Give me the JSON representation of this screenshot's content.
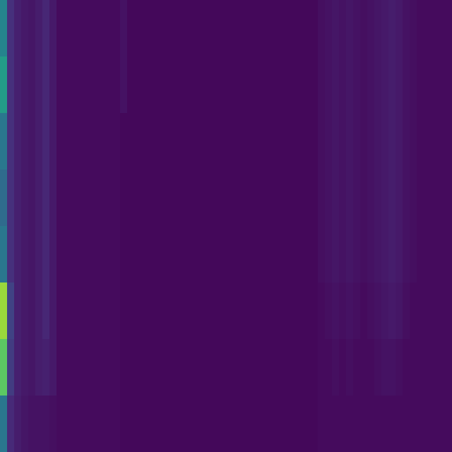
{
  "chart_data": {
    "type": "heatmap",
    "tick_labels": false,
    "zlim": [
      0,
      1
    ],
    "cells": [
      [
        0.45,
        0.14,
        0.09,
        0.07,
        0.06,
        0.08,
        0.11,
        0.07,
        0.03,
        0.03,
        0.03,
        0.03,
        0.03,
        0.03,
        0.03,
        0.03,
        0.03,
        0.05,
        0.02,
        0.02,
        0.02,
        0.02,
        0.02,
        0.02,
        0.02,
        0.02,
        0.02,
        0.02,
        0.02,
        0.02,
        0.02,
        0.02,
        0.02,
        0.02,
        0.02,
        0.02,
        0.02,
        0.02,
        0.02,
        0.02,
        0.02,
        0.02,
        0.02,
        0.02,
        0.02,
        0.04,
        0.05,
        0.06,
        0.05,
        0.06,
        0.05,
        0.04,
        0.05,
        0.06,
        0.07,
        0.08,
        0.07,
        0.05,
        0.04,
        0.03,
        0.03,
        0.03,
        0.03,
        0.03
      ],
      [
        0.55,
        0.14,
        0.09,
        0.07,
        0.06,
        0.08,
        0.11,
        0.07,
        0.03,
        0.03,
        0.03,
        0.03,
        0.03,
        0.03,
        0.03,
        0.03,
        0.03,
        0.05,
        0.02,
        0.02,
        0.02,
        0.02,
        0.02,
        0.02,
        0.02,
        0.02,
        0.02,
        0.02,
        0.02,
        0.02,
        0.02,
        0.02,
        0.02,
        0.02,
        0.02,
        0.02,
        0.02,
        0.02,
        0.02,
        0.02,
        0.02,
        0.02,
        0.02,
        0.02,
        0.02,
        0.04,
        0.05,
        0.06,
        0.05,
        0.06,
        0.05,
        0.04,
        0.05,
        0.06,
        0.07,
        0.08,
        0.07,
        0.05,
        0.04,
        0.03,
        0.03,
        0.03,
        0.03,
        0.03
      ],
      [
        0.4,
        0.14,
        0.09,
        0.07,
        0.06,
        0.08,
        0.11,
        0.07,
        0.03,
        0.03,
        0.03,
        0.03,
        0.03,
        0.03,
        0.03,
        0.03,
        0.03,
        0.02,
        0.02,
        0.02,
        0.02,
        0.02,
        0.02,
        0.02,
        0.02,
        0.02,
        0.02,
        0.02,
        0.02,
        0.02,
        0.02,
        0.02,
        0.02,
        0.02,
        0.02,
        0.02,
        0.02,
        0.02,
        0.02,
        0.02,
        0.02,
        0.02,
        0.02,
        0.02,
        0.02,
        0.04,
        0.05,
        0.06,
        0.05,
        0.06,
        0.05,
        0.04,
        0.05,
        0.06,
        0.07,
        0.08,
        0.07,
        0.05,
        0.04,
        0.03,
        0.03,
        0.03,
        0.03,
        0.03
      ],
      [
        0.35,
        0.14,
        0.09,
        0.07,
        0.06,
        0.08,
        0.11,
        0.07,
        0.03,
        0.03,
        0.03,
        0.03,
        0.03,
        0.03,
        0.03,
        0.03,
        0.03,
        0.02,
        0.02,
        0.02,
        0.02,
        0.02,
        0.02,
        0.02,
        0.02,
        0.02,
        0.02,
        0.02,
        0.02,
        0.02,
        0.02,
        0.02,
        0.02,
        0.02,
        0.02,
        0.02,
        0.02,
        0.02,
        0.02,
        0.02,
        0.02,
        0.02,
        0.02,
        0.02,
        0.02,
        0.04,
        0.05,
        0.06,
        0.05,
        0.06,
        0.05,
        0.04,
        0.05,
        0.06,
        0.07,
        0.08,
        0.07,
        0.05,
        0.04,
        0.03,
        0.03,
        0.03,
        0.03,
        0.03
      ],
      [
        0.4,
        0.14,
        0.09,
        0.07,
        0.06,
        0.08,
        0.11,
        0.07,
        0.03,
        0.03,
        0.03,
        0.03,
        0.03,
        0.03,
        0.03,
        0.03,
        0.03,
        0.02,
        0.02,
        0.02,
        0.02,
        0.02,
        0.02,
        0.02,
        0.02,
        0.02,
        0.02,
        0.02,
        0.02,
        0.02,
        0.02,
        0.02,
        0.02,
        0.02,
        0.02,
        0.02,
        0.02,
        0.02,
        0.02,
        0.02,
        0.02,
        0.02,
        0.02,
        0.02,
        0.02,
        0.04,
        0.05,
        0.06,
        0.05,
        0.06,
        0.05,
        0.04,
        0.05,
        0.06,
        0.07,
        0.08,
        0.07,
        0.05,
        0.04,
        0.03,
        0.03,
        0.03,
        0.03,
        0.03
      ],
      [
        0.85,
        0.2,
        0.09,
        0.07,
        0.06,
        0.08,
        0.11,
        0.07,
        0.03,
        0.03,
        0.03,
        0.03,
        0.03,
        0.03,
        0.03,
        0.03,
        0.03,
        0.02,
        0.02,
        0.02,
        0.02,
        0.02,
        0.02,
        0.02,
        0.02,
        0.02,
        0.02,
        0.02,
        0.02,
        0.02,
        0.02,
        0.02,
        0.02,
        0.02,
        0.02,
        0.02,
        0.02,
        0.02,
        0.02,
        0.02,
        0.02,
        0.02,
        0.02,
        0.02,
        0.02,
        0.03,
        0.04,
        0.05,
        0.04,
        0.05,
        0.04,
        0.03,
        0.04,
        0.05,
        0.06,
        0.07,
        0.06,
        0.04,
        0.03,
        0.03,
        0.03,
        0.03,
        0.03,
        0.03
      ],
      [
        0.75,
        0.18,
        0.09,
        0.07,
        0.06,
        0.08,
        0.09,
        0.07,
        0.03,
        0.03,
        0.03,
        0.03,
        0.03,
        0.03,
        0.03,
        0.03,
        0.03,
        0.02,
        0.02,
        0.02,
        0.02,
        0.02,
        0.02,
        0.02,
        0.02,
        0.02,
        0.02,
        0.02,
        0.02,
        0.02,
        0.02,
        0.02,
        0.02,
        0.02,
        0.02,
        0.02,
        0.02,
        0.02,
        0.02,
        0.02,
        0.02,
        0.02,
        0.02,
        0.02,
        0.02,
        0.03,
        0.03,
        0.04,
        0.03,
        0.04,
        0.03,
        0.03,
        0.03,
        0.04,
        0.05,
        0.05,
        0.04,
        0.03,
        0.03,
        0.03,
        0.03,
        0.03,
        0.03,
        0.03
      ],
      [
        0.4,
        0.12,
        0.08,
        0.06,
        0.05,
        0.05,
        0.05,
        0.04,
        0.03,
        0.03,
        0.03,
        0.03,
        0.03,
        0.03,
        0.03,
        0.03,
        0.03,
        0.02,
        0.02,
        0.02,
        0.02,
        0.02,
        0.02,
        0.02,
        0.02,
        0.02,
        0.02,
        0.02,
        0.02,
        0.02,
        0.02,
        0.02,
        0.02,
        0.02,
        0.02,
        0.02,
        0.02,
        0.02,
        0.02,
        0.02,
        0.02,
        0.02,
        0.02,
        0.02,
        0.02,
        0.03,
        0.03,
        0.03,
        0.03,
        0.03,
        0.03,
        0.03,
        0.03,
        0.03,
        0.03,
        0.03,
        0.03,
        0.03,
        0.03,
        0.03,
        0.03,
        0.03,
        0.03,
        0.03
      ]
    ]
  }
}
